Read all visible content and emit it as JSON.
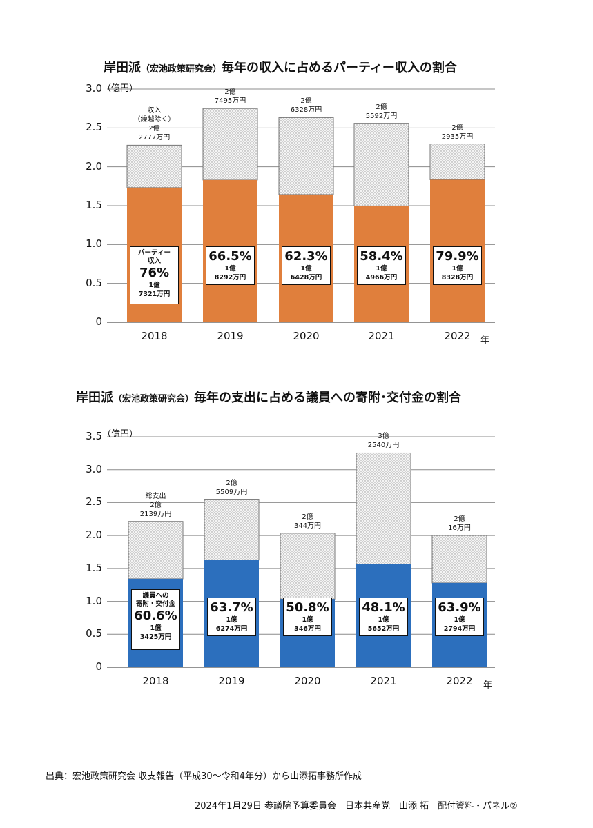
{
  "colors": {
    "party": "#e07f3c",
    "donation": "#2c6fbd",
    "hatch": "#cfcfcf",
    "grid": "#8c8c8c"
  },
  "chart_data": [
    {
      "type": "bar",
      "title": "岸田派",
      "title_paren": "（宏池政策研究会）",
      "title_rest": "毎年の収入に占めるパーティー収入の割合",
      "unit": "（億円）",
      "year_suffix": "年",
      "categories": [
        "2018",
        "2019",
        "2020",
        "2021",
        "2022"
      ],
      "ylim": [
        0,
        3.0
      ],
      "yticks": [
        "0",
        "0.5",
        "1.0",
        "1.5",
        "2.0",
        "2.5",
        "3.0"
      ],
      "series": [
        {
          "name": "パーティー収入",
          "values": [
            1.7321,
            1.8292,
            1.6428,
            1.4966,
            1.8328
          ]
        },
        {
          "name": "収入（繰越除く）",
          "values": [
            2.2777,
            2.7495,
            2.6328,
            2.5592,
            2.2935
          ]
        }
      ],
      "top_labels": [
        [
          "収入",
          "（繰越除く）",
          "2億",
          "2777万円"
        ],
        [
          "2億",
          "7495万円"
        ],
        [
          "2億",
          "6328万円"
        ],
        [
          "2億",
          "5592万円"
        ],
        [
          "2億",
          "2935万円"
        ]
      ],
      "boxes": [
        {
          "head": [
            "パーティー",
            "収入"
          ],
          "pct": "76%",
          "amt": [
            "1億",
            "7321万円"
          ]
        },
        {
          "head": [],
          "pct": "66.5%",
          "amt": [
            "1億",
            "8292万円"
          ]
        },
        {
          "head": [],
          "pct": "62.3%",
          "amt": [
            "1億",
            "6428万円"
          ]
        },
        {
          "head": [],
          "pct": "58.4%",
          "amt": [
            "1億",
            "4966万円"
          ]
        },
        {
          "head": [],
          "pct": "79.9%",
          "amt": [
            "1億",
            "8328万円"
          ]
        }
      ]
    },
    {
      "type": "bar",
      "title": "岸田派",
      "title_paren": "（宏池政策研究会）",
      "title_rest": "毎年の支出に占める議員への寄附･交付金の割合",
      "unit": "（億円）",
      "year_suffix": "年",
      "categories": [
        "2018",
        "2019",
        "2020",
        "2021",
        "2022"
      ],
      "ylim": [
        0,
        3.5
      ],
      "yticks": [
        "0",
        "0.5",
        "1.0",
        "1.5",
        "2.0",
        "2.5",
        "3.0",
        "3.5"
      ],
      "series": [
        {
          "name": "議員への寄附・交付金",
          "values": [
            1.3425,
            1.6274,
            1.0346,
            1.5652,
            1.2794
          ]
        },
        {
          "name": "総支出",
          "values": [
            2.2139,
            2.5509,
            2.0344,
            3.254,
            2.0016
          ]
        }
      ],
      "top_labels": [
        [
          "総支出",
          "2億",
          "2139万円"
        ],
        [
          "2億",
          "5509万円"
        ],
        [
          "2億",
          "344万円"
        ],
        [
          "3億",
          "2540万円"
        ],
        [
          "2億",
          "16万円"
        ]
      ],
      "boxes": [
        {
          "head": [
            "議員への",
            "寄附・交付金"
          ],
          "pct": "60.6%",
          "amt": [
            "1億",
            "3425万円"
          ]
        },
        {
          "head": [],
          "pct": "63.7%",
          "amt": [
            "1億",
            "6274万円"
          ]
        },
        {
          "head": [],
          "pct": "50.8%",
          "amt": [
            "1億",
            "346万円"
          ]
        },
        {
          "head": [],
          "pct": "48.1%",
          "amt": [
            "1億",
            "5652万円"
          ]
        },
        {
          "head": [],
          "pct": "63.9%",
          "amt": [
            "1億",
            "2794万円"
          ]
        }
      ]
    }
  ],
  "footer": {
    "source": "出典：宏池政策研究会 収支報告（平成30～令和4年分）から山添拓事務所作成",
    "credit": "2024年1月29日 参議院予算委員会　日本共産党　山添 拓　配付資料・パネル②"
  }
}
